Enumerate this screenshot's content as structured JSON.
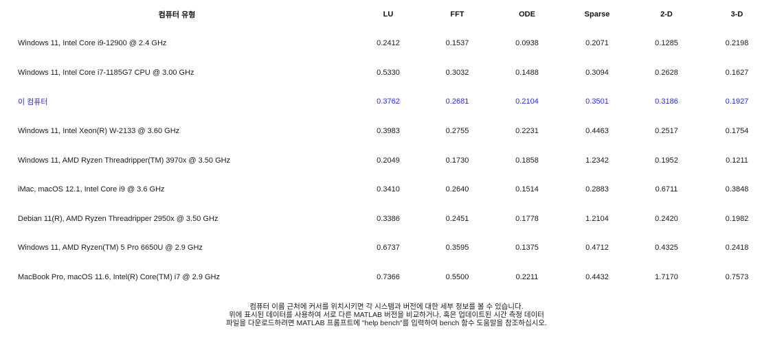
{
  "table": {
    "headers": {
      "name": "컴퓨터 유형",
      "lu": "LU",
      "fft": "FFT",
      "ode": "ODE",
      "sparse": "Sparse",
      "d2": "2-D",
      "d3": "3-D"
    },
    "rows": [
      {
        "name": "Windows 11, Intel Core i9-12900 @ 2.4 GHz",
        "lu": "0.2412",
        "fft": "0.1537",
        "ode": "0.0938",
        "sparse": "0.2071",
        "d2": "0.1285",
        "d3": "0.2198"
      },
      {
        "name": "Windows 11, Intel Core i7-1185G7 CPU @ 3.00 GHz",
        "lu": "0.5330",
        "fft": "0.3032",
        "ode": "0.1488",
        "sparse": "0.3094",
        "d2": "0.2628",
        "d3": "0.1627"
      },
      {
        "name": "이 컴퓨터",
        "lu": "0.3762",
        "fft": "0.2681",
        "ode": "0.2104",
        "sparse": "0.3501",
        "d2": "0.3186",
        "d3": "0.1927"
      },
      {
        "name": "Windows 11, Intel Xeon(R) W-2133 @ 3.60 GHz",
        "lu": "0.3983",
        "fft": "0.2755",
        "ode": "0.2231",
        "sparse": "0.4463",
        "d2": "0.2517",
        "d3": "0.1754"
      },
      {
        "name": "Windows 11, AMD Ryzen Threadripper(TM) 3970x @ 3.50 GHz",
        "lu": "0.2049",
        "fft": "0.1730",
        "ode": "0.1858",
        "sparse": "1.2342",
        "d2": "0.1952",
        "d3": "0.1211"
      },
      {
        "name": "iMac, macOS 12.1, Intel Core i9 @ 3.6 GHz",
        "lu": "0.3410",
        "fft": "0.2640",
        "ode": "0.1514",
        "sparse": "0.2883",
        "d2": "0.6711",
        "d3": "0.3848"
      },
      {
        "name": "Debian 11(R), AMD Ryzen Threadripper 2950x @ 3.50 GHz",
        "lu": "0.3386",
        "fft": "0.2451",
        "ode": "0.1778",
        "sparse": "1.2104",
        "d2": "0.2420",
        "d3": "0.1982"
      },
      {
        "name": "Windows 11, AMD Ryzen(TM) 5 Pro 6650U @ 2.9 GHz",
        "lu": "0.6737",
        "fft": "0.3595",
        "ode": "0.1375",
        "sparse": "0.4712",
        "d2": "0.4325",
        "d3": "0.2418"
      },
      {
        "name": "MacBook Pro, macOS 11.6, Intel(R) Core(TM) i7 @ 2.9 GHz",
        "lu": "0.7366",
        "fft": "0.5500",
        "ode": "0.2211",
        "sparse": "0.4432",
        "d2": "1.7170",
        "d3": "0.7573"
      }
    ]
  },
  "footnote": {
    "line1": "컴퓨터 이름 근처에 커서를 위치시키면 각 시스템과 버전에 대한 세부 정보를 볼 수 있습니다.",
    "line2": "위에 표시된 데이터를 사용하여 서로 다른 MATLAB 버전을 비교하거나, 혹은 업데이트된 시간 측정 데이터",
    "line3": "파일을 다운로드하려면 MATLAB 프롬프트에 \"help bench\"를 입력하여 bench 함수 도움말을 참조하십시오."
  },
  "colors": {
    "highlight_row": "#2b2bd9",
    "text": "#1a1a1a",
    "background": "#ffffff"
  }
}
